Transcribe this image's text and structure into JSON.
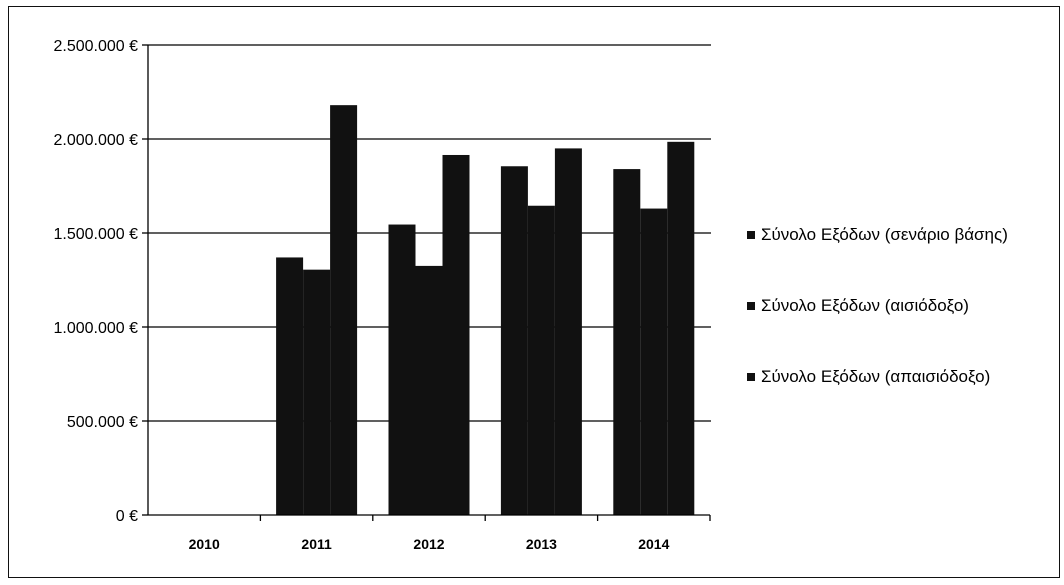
{
  "chart_data": {
    "type": "bar",
    "categories": [
      "2010",
      "2011",
      "2012",
      "2013",
      "2014"
    ],
    "series": [
      {
        "name": "Σύνολο Εξόδων (σενάριο βάσης)",
        "values": [
          0,
          1370000,
          1545000,
          1855000,
          1840000
        ]
      },
      {
        "name": "Σύνολο Εξόδων (αισιόδοξο)",
        "values": [
          0,
          1305000,
          1325000,
          1645000,
          1630000
        ]
      },
      {
        "name": "Σύνολο Εξόδων (απαισιόδοξο)",
        "values": [
          0,
          2180000,
          1915000,
          1950000,
          1985000
        ]
      }
    ],
    "y_ticks": [
      "0 €",
      "500.000 €",
      "1.000.000 €",
      "1.500.000 €",
      "2.000.000 €",
      "2.500.000 €"
    ],
    "ylim": [
      0,
      2500000
    ],
    "grid": true,
    "legend_position": "right",
    "colors": {
      "bars": "#111111",
      "grid": "#000000",
      "background": "#ffffff"
    }
  }
}
